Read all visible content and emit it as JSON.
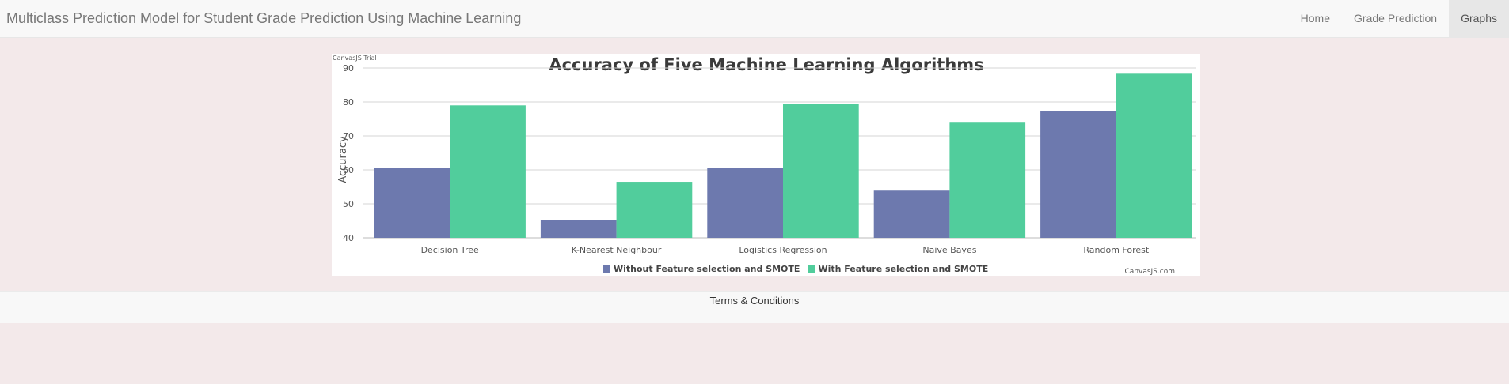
{
  "navbar": {
    "brand": "Multiclass Prediction Model for Student Grade Prediction Using Machine Learning",
    "items": [
      {
        "label": "Home",
        "active": false
      },
      {
        "label": "Grade Prediction",
        "active": false
      },
      {
        "label": "Graphs",
        "active": true
      }
    ]
  },
  "chart_watermark": {
    "trial": "CanvasJS Trial",
    "credit": "CanvasJS.com"
  },
  "chart_data": {
    "type": "bar",
    "title": "Accuracy of Five Machine Learning Algorithms",
    "xlabel": "",
    "ylabel": "Accuracy",
    "ylim": [
      40,
      90
    ],
    "yticks": [
      40,
      50,
      60,
      70,
      80,
      90
    ],
    "grid": true,
    "legend_position": "bottom",
    "categories": [
      "Decision Tree",
      "K-Nearest Neighbour",
      "Logistics Regression",
      "Naive Bayes",
      "Random Forest"
    ],
    "series": [
      {
        "name": "Without Feature selection and SMOTE",
        "color": "#6d79ae",
        "values": [
          60.5,
          45.3,
          60.5,
          53.9,
          77.3
        ]
      },
      {
        "name": "With Feature selection and SMOTE",
        "color": "#51cd9c",
        "values": [
          79.0,
          56.5,
          79.5,
          73.9,
          88.3
        ]
      }
    ]
  },
  "footer": {
    "link": "Terms & Conditions"
  }
}
